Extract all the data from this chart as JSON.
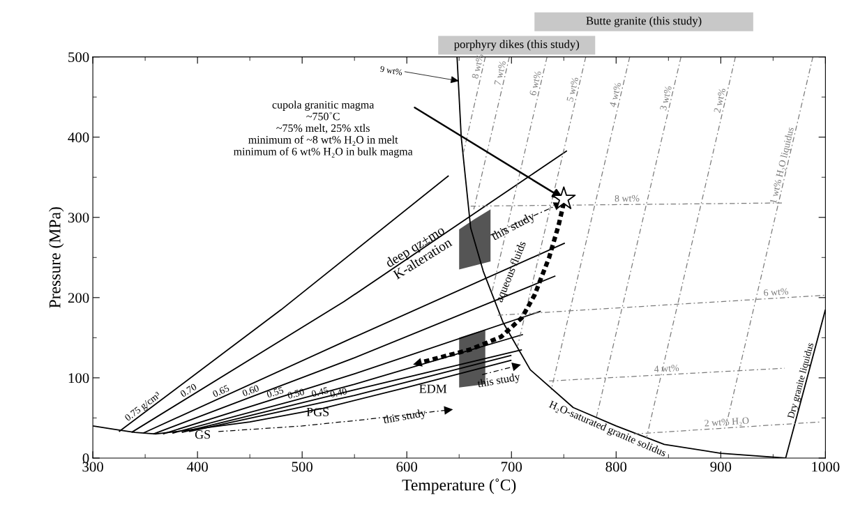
{
  "chart_data": [
    {
      "type": "bar",
      "orientation": "horizontal",
      "categories": [
        "Butte granite (this study)",
        "porphyry dikes (this study)"
      ],
      "base": [
        722,
        630
      ],
      "values": [
        209,
        150
      ],
      "colors": [
        "#c8c8c8",
        "#c8c8c8"
      ],
      "xlim": [
        300,
        1000
      ]
    },
    {
      "type": "line",
      "xlabel": "Temperature (˚C)",
      "ylabel": "Pressure (MPa)",
      "xlim": [
        300,
        1000
      ],
      "ylim": [
        0,
        500
      ],
      "xticks": [
        300,
        400,
        500,
        600,
        700,
        800,
        900,
        1000
      ],
      "yticks": [
        0,
        100,
        200,
        300,
        400,
        500
      ],
      "grid": false,
      "series": [
        {
          "name": "H₂O-saturated granite solidus",
          "color": "#000000",
          "line_style": "solid",
          "x": [
            648,
            652,
            661,
            673,
            692,
            718,
            759,
            800,
            846,
            900,
            962
          ],
          "values": [
            500,
            400,
            287,
            233,
            169,
            110,
            63,
            40,
            17,
            6,
            0
          ]
        },
        {
          "name": "Dry granite liquidus",
          "color": "#000000",
          "line_style": "solid",
          "x": [
            962,
            1000
          ],
          "values": [
            0,
            185
          ]
        },
        {
          "color": "#000000",
          "line_style": "solid",
          "x": [
            300,
            320,
            340,
            360,
            380,
            450,
            520,
            600,
            700
          ],
          "values": [
            40,
            36,
            32,
            30,
            33,
            45,
            62,
            88,
            122
          ]
        },
        {
          "name": "0.75 g/cm³",
          "color": "#000000",
          "line_style": "solid",
          "x": [
            325,
            480,
            640
          ],
          "values": [
            33,
            185,
            352
          ]
        },
        {
          "name": "0.70",
          "color": "#000000",
          "line_style": "solid",
          "x": [
            337,
            540,
            753
          ],
          "values": [
            32,
            195,
            383
          ]
        },
        {
          "name": "0.65",
          "color": "#000000",
          "line_style": "solid",
          "x": [
            348,
            540,
            751
          ],
          "values": [
            31,
            145,
            268
          ]
        },
        {
          "name": "0.60",
          "color": "#000000",
          "line_style": "solid",
          "x": [
            358,
            550,
            742
          ],
          "values": [
            30,
            125,
            227
          ]
        },
        {
          "name": "0.55",
          "color": "#000000",
          "line_style": "solid",
          "x": [
            367,
            550,
            728
          ],
          "values": [
            30,
            105,
            183
          ]
        },
        {
          "name": "0.50",
          "color": "#000000",
          "line_style": "solid",
          "x": [
            376,
            550,
            711
          ],
          "values": [
            31,
            92,
            154
          ]
        },
        {
          "name": "0.45",
          "color": "#000000",
          "line_style": "solid",
          "x": [
            385,
            550,
            710
          ],
          "values": [
            32,
            85,
            135
          ]
        },
        {
          "name": "0.40",
          "color": "#000000",
          "line_style": "solid",
          "x": [
            392,
            550,
            700
          ],
          "values": [
            33,
            78,
            128
          ]
        },
        {
          "name": "8 wt%",
          "color": "#7a7a7a",
          "line_style": "dashed",
          "x": [
            675,
            654
          ],
          "values": [
            500,
            380
          ]
        },
        {
          "name": "7 wt%",
          "color": "#7a7a7a",
          "line_style": "dashed",
          "x": [
            698,
            664
          ],
          "values": [
            500,
            310
          ]
        },
        {
          "name": "6 wt%",
          "color": "#7a7a7a",
          "line_style": "dashed",
          "x": [
            734,
            681
          ],
          "values": [
            500,
            205
          ]
        },
        {
          "name": "5 wt%",
          "color": "#7a7a7a",
          "line_style": "dashed",
          "x": [
            771,
            706
          ],
          "values": [
            500,
            140
          ]
        },
        {
          "name": "4 wt%",
          "color": "#7a7a7a",
          "line_style": "dashed",
          "x": [
            813,
            738
          ],
          "values": [
            500,
            85
          ]
        },
        {
          "name": "3 wt%",
          "color": "#7a7a7a",
          "line_style": "dashed",
          "x": [
            862,
            781
          ],
          "values": [
            500,
            50
          ]
        },
        {
          "name": "2 wt%",
          "color": "#7a7a7a",
          "line_style": "dashed",
          "x": [
            914,
            829
          ],
          "values": [
            500,
            25
          ]
        },
        {
          "name": "1 wt% H₂O liquidus",
          "color": "#7a7a7a",
          "line_style": "dashed",
          "x": [
            988,
            905
          ],
          "values": [
            500,
            40
          ]
        },
        {
          "name": "8 wt%",
          "color": "#7a7a7a",
          "line_style": "dashed",
          "x": [
            661,
            960
          ],
          "values": [
            314,
            318
          ]
        },
        {
          "name": "6 wt%",
          "color": "#7a7a7a",
          "line_style": "dashed",
          "x": [
            687,
            1000
          ],
          "values": [
            178,
            203
          ]
        },
        {
          "name": "4 wt%",
          "color": "#7a7a7a",
          "line_style": "dashed",
          "x": [
            736,
            961
          ],
          "values": [
            96,
            112
          ]
        },
        {
          "name": "2 wt% H₂O",
          "color": "#7a7a7a",
          "line_style": "dashed",
          "x": [
            817,
            995
          ],
          "values": [
            30,
            45
          ]
        },
        {
          "color": "#555555",
          "x": [
            650,
            662,
            675
          ],
          "values": [
            null,
            null,
            null
          ],
          "lower": [
            88,
            90,
            92
          ],
          "upper": [
            150,
            155,
            160
          ]
        },
        {
          "color": "#555555",
          "x": [
            650,
            665,
            680
          ],
          "values": [
            null,
            null,
            null
          ],
          "lower": [
            235,
            240,
            245
          ],
          "upper": [
            285,
            298,
            310
          ]
        },
        {
          "color": "#000000",
          "line_style": "dashed",
          "x": [
            680,
            745
          ],
          "values": [
            278,
            316
          ]
        },
        {
          "color": "#000000",
          "line_style": "dotted",
          "x": [
            750,
            745,
            736,
            722,
            710,
            690,
            660,
            610
          ],
          "values": [
            318,
            290,
            250,
            203,
            175,
            151,
            135,
            118
          ]
        },
        {
          "color": "#000000",
          "line_style": "dashed",
          "x": [
            672,
            705
          ],
          "values": [
            104,
            115
          ]
        },
        {
          "color": "#000000",
          "line_style": "dashed",
          "x": [
            420,
            500,
            560,
            640
          ],
          "values": [
            33,
            40,
            48,
            60
          ]
        },
        {
          "type": "scatter",
          "marker": "star",
          "color": "#ffffff",
          "x": [
            750
          ],
          "values": [
            323
          ]
        }
      ],
      "annotations": [
        {
          "text": "cupola granitic magma\n~750˚C\n~75% melt, 25% xtls\nminimum of ~8 wt% H₂O in melt\nminimum of 6 wt% H₂O in bulk magma",
          "x": 750,
          "y": 323
        },
        "deep qz±mo\nK-alteration",
        "this study",
        "aqueous fluids",
        "this study",
        "EDM",
        "PGS",
        "GS",
        "this study",
        {
          "text": "9 wt%",
          "x": 650,
          "y": 470
        }
      ]
    }
  ]
}
